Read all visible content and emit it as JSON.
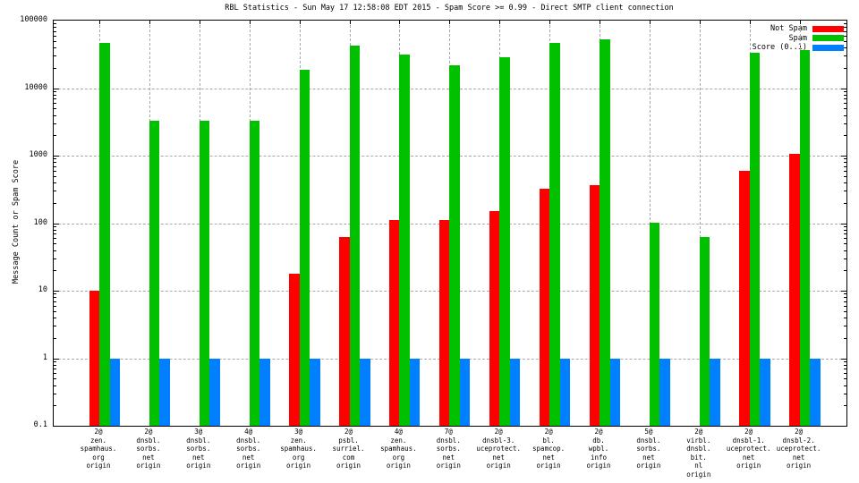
{
  "chart_data": {
    "type": "bar",
    "title": "RBL Statistics - Sun May 17 12:58:08 EDT 2015 - Spam Score >= 0.99 - Direct SMTP client connection",
    "ylabel": "Message Count or Spam Score",
    "yscale": "log",
    "ylim": [
      0.1,
      100000
    ],
    "ytick_values": [
      0.1,
      1,
      10,
      100,
      1000,
      10000,
      100000
    ],
    "ytick_labels": [
      "0.1",
      "1",
      "10",
      "100",
      "1000",
      "10000",
      "100000"
    ],
    "grid": true,
    "legend_position": "top-right-inside",
    "background_color": "#ffffff",
    "grid_color": "#a8a8a8",
    "categories": [
      [
        "2@",
        "zen.",
        "spamhaus.",
        "org",
        "origin"
      ],
      [
        "2@",
        "dnsbl.",
        "sorbs.",
        "net",
        "origin"
      ],
      [
        "3@",
        "dnsbl.",
        "sorbs.",
        "net",
        "origin"
      ],
      [
        "4@",
        "dnsbl.",
        "sorbs.",
        "net",
        "origin"
      ],
      [
        "3@",
        "zen.",
        "spamhaus.",
        "org",
        "origin"
      ],
      [
        "2@",
        "psbl.",
        "surriel.",
        "com",
        "origin"
      ],
      [
        "4@",
        "zen.",
        "spamhaus.",
        "org",
        "origin"
      ],
      [
        "7@",
        "dnsbl.",
        "sorbs.",
        "net",
        "origin"
      ],
      [
        "2@",
        "dnsbl-3.",
        "uceprotect.",
        "net",
        "origin"
      ],
      [
        "2@",
        "bl.",
        "spamcop.",
        "net",
        "origin"
      ],
      [
        "2@",
        "db.",
        "wpbl.",
        "info",
        "origin"
      ],
      [
        "5@",
        "dnsbl.",
        "sorbs.",
        "net",
        "origin"
      ],
      [
        "2@",
        "virbl.",
        "dnsbl.",
        "bit.",
        "nl",
        "origin"
      ],
      [
        "2@",
        "dnsbl-1.",
        "uceprotect.",
        "net",
        "origin"
      ],
      [
        "2@",
        "dnsbl-2.",
        "uceprotect.",
        "net",
        "origin"
      ]
    ],
    "series": [
      {
        "name": "Not Spam",
        "color": "#ff0000",
        "values": [
          10,
          0,
          0,
          0,
          18,
          62,
          110,
          110,
          150,
          320,
          370,
          0,
          0,
          600,
          1050
        ]
      },
      {
        "name": "Spam",
        "color": "#00c000",
        "values": [
          47000,
          3300,
          3300,
          3300,
          18500,
          42000,
          31000,
          22000,
          29000,
          46000,
          52000,
          103,
          63,
          33000,
          37000
        ]
      },
      {
        "name": "Score (0..1)",
        "color": "#0080ff",
        "values": [
          1,
          1,
          1,
          1,
          1,
          1,
          1,
          1,
          1,
          1,
          1,
          1,
          1,
          1,
          1
        ]
      }
    ]
  }
}
